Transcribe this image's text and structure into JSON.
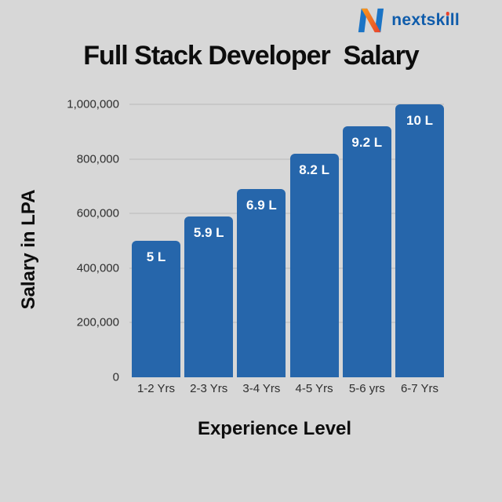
{
  "brand": {
    "name": "nextskill",
    "text_color": "#0f5cab",
    "dot_color": "#e8422c",
    "mark_blue": "#1b74c5",
    "mark_orange": "#f89b1c",
    "mark_red": "#e8422c"
  },
  "title": "Full Stack Developer  Salary",
  "chart_data": {
    "type": "bar",
    "title": "Full Stack Developer Salary",
    "xlabel": "Experience Level",
    "ylabel": "Salary in LPA",
    "categories": [
      "1-2 Yrs",
      "2-3 Yrs",
      "3-4 Yrs",
      "4-5 Yrs",
      "5-6 yrs",
      "6-7 Yrs"
    ],
    "values": [
      500000,
      590000,
      690000,
      820000,
      920000,
      1000000
    ],
    "bar_labels": [
      "5 L",
      "5.9 L",
      "6.9 L",
      "8.2 L",
      "9.2 L",
      "10 L"
    ],
    "ylim": [
      0,
      1000000
    ],
    "yticks": [
      0,
      200000,
      400000,
      600000,
      800000,
      1000000
    ],
    "ytick_labels": [
      "0",
      "200,000",
      "400,000",
      "600,000",
      "800,000",
      "1,000,000"
    ],
    "grid": true,
    "legend": false,
    "bar_color": "#2666ab",
    "bar_label_color": "#ffffff"
  },
  "colors": {
    "background": "#d7d7d7",
    "gridline": "#c8c8c8",
    "tick_text": "#2e2e2e",
    "heading_text": "#0d0d0d"
  }
}
